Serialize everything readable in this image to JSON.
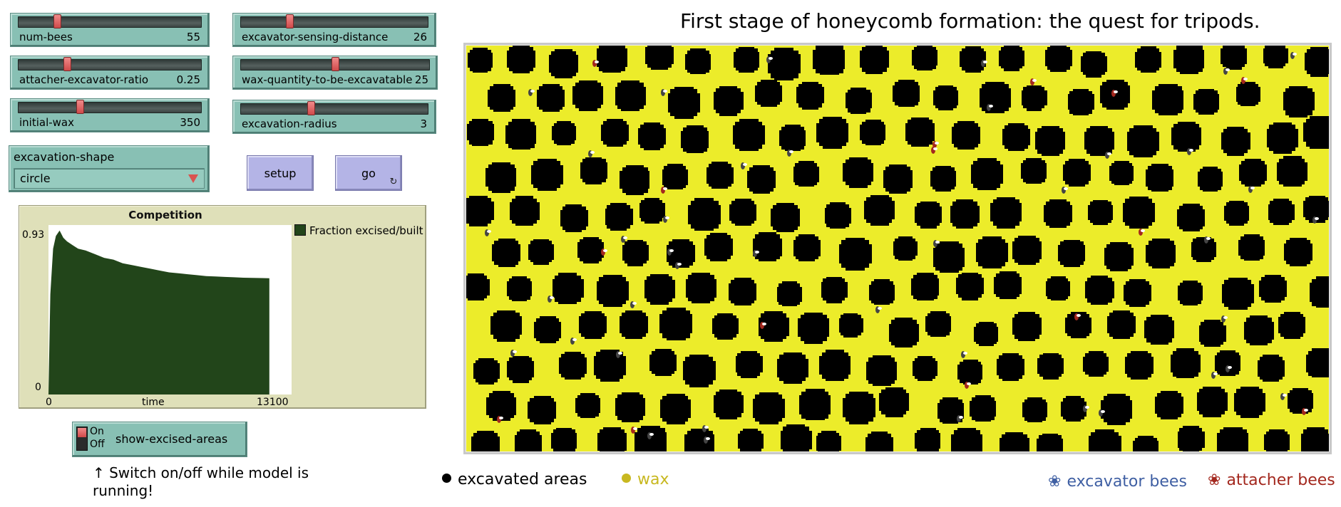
{
  "title": "First stage of honeycomb formation: the quest for tripods.",
  "sliders": [
    {
      "label": "num-bees",
      "value": "55",
      "fraction": 0.22
    },
    {
      "label": "excavator-sensing-distance",
      "value": "26",
      "fraction": 0.26
    },
    {
      "label": "attacher-excavator-ratio",
      "value": "0.25",
      "fraction": 0.25
    },
    {
      "label": "wax-quantity-to-be-excavatable",
      "value": "25",
      "fraction": 0.5
    },
    {
      "label": "initial-wax",
      "value": "350",
      "fraction": 0.35
    },
    {
      "label": "excavation-radius",
      "value": "3",
      "fraction": 0.37
    }
  ],
  "chooser": {
    "label": "excavation-shape",
    "value": "circle"
  },
  "buttons": {
    "setup": "setup",
    "go": "go"
  },
  "plot": {
    "title": "Competition",
    "legend": "Fraction excised/built",
    "ymax_label": "0.93",
    "ymin_label": "0",
    "xmin_label": "0",
    "xmax_label": "13100",
    "xlabel": "time",
    "fill_color": "#22451a"
  },
  "chart_data": {
    "type": "area",
    "title": "Competition",
    "xlabel": "time",
    "ylabel": "",
    "xlim": [
      0,
      13100
    ],
    "ylim": [
      0,
      0.93
    ],
    "series": [
      {
        "name": "Fraction excised/built",
        "x": [
          0,
          100,
          250,
          400,
          600,
          800,
          1000,
          1300,
          1600,
          2000,
          2500,
          3000,
          3500,
          4000,
          4500,
          5000,
          5500,
          6000,
          6500,
          7000,
          7500,
          8000,
          8500,
          9000,
          9500,
          10000,
          10500,
          11000,
          11500,
          11900
        ],
        "y": [
          0.0,
          0.55,
          0.8,
          0.87,
          0.9,
          0.86,
          0.84,
          0.82,
          0.8,
          0.79,
          0.77,
          0.75,
          0.74,
          0.72,
          0.71,
          0.7,
          0.69,
          0.68,
          0.67,
          0.665,
          0.66,
          0.655,
          0.65,
          0.648,
          0.645,
          0.643,
          0.641,
          0.64,
          0.639,
          0.638
        ]
      }
    ]
  },
  "switch": {
    "label": "show-excised-areas",
    "on": "On",
    "off": "Off",
    "state": "on"
  },
  "note": "↑ Switch on/off while model is running!",
  "legend_keys": {
    "excavated": "excavated areas",
    "wax": "wax",
    "excavator": "excavator bees",
    "attacher": "attacher bees"
  },
  "colors": {
    "wax": "#ecec2a",
    "excavated": "#000000",
    "wax_key": "#c8b820",
    "excavator_key": "#3f5fa3",
    "attacher_key": "#a3281e"
  }
}
